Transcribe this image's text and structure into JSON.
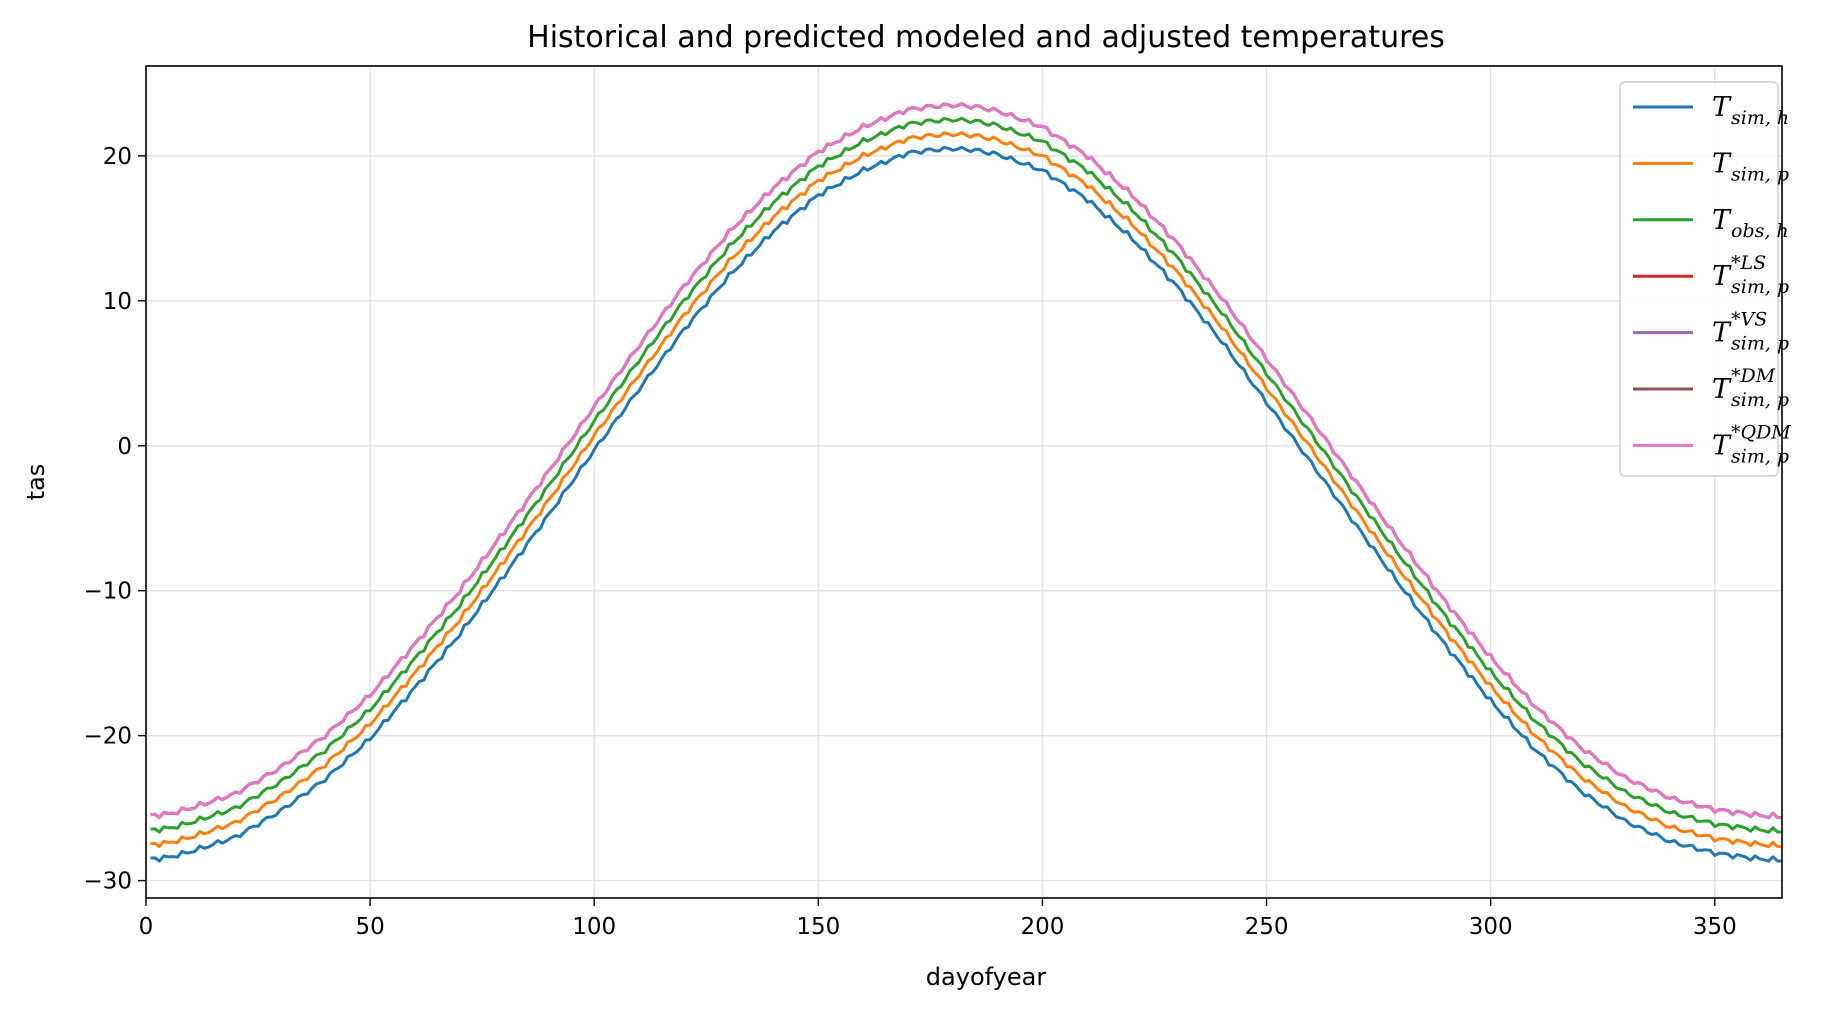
{
  "chart_data": {
    "type": "line",
    "title": "Historical and predicted modeled and adjusted temperatures",
    "xlabel": "dayofyear",
    "ylabel": "tas",
    "xlim": [
      0,
      365
    ],
    "ylim": [
      -31.2,
      26.2
    ],
    "x_ticks": [
      0,
      50,
      100,
      150,
      200,
      250,
      300,
      350
    ],
    "y_ticks": [
      -30,
      -20,
      -10,
      0,
      10,
      20
    ],
    "grid": true,
    "legend_position": "top-right",
    "curve_model": {
      "x": [
        1,
        5,
        10,
        20,
        30,
        40,
        50,
        60,
        70,
        80,
        90,
        100,
        110,
        120,
        130,
        140,
        150,
        160,
        170,
        175,
        180,
        185,
        190,
        200,
        210,
        220,
        230,
        240,
        250,
        260,
        270,
        280,
        290,
        300,
        310,
        320,
        330,
        340,
        350,
        360,
        365
      ],
      "base_sim_h": [
        -28.5,
        -28.4,
        -28.0,
        -27.0,
        -25.2,
        -23.0,
        -20.2,
        -16.7,
        -13.0,
        -8.9,
        -4.7,
        -0.3,
        3.9,
        8.0,
        11.7,
        14.8,
        17.3,
        19.0,
        20.2,
        20.4,
        20.5,
        20.4,
        20.1,
        19.0,
        17.0,
        14.3,
        11.0,
        7.2,
        3.0,
        -1.2,
        -5.5,
        -9.7,
        -13.8,
        -17.6,
        -21.0,
        -23.8,
        -25.9,
        -27.3,
        -28.1,
        -28.5,
        -28.6
      ]
    },
    "series": [
      {
        "name": "T_{sim,h}",
        "color": "#1f77b4",
        "offset": 0
      },
      {
        "name": "T_{sim,p}",
        "color": "#ff7f0e",
        "offset": 1
      },
      {
        "name": "T_{obs,h}",
        "color": "#2ca02c",
        "offset": 2
      },
      {
        "name": "T^{*LS}_{sim,p}",
        "color": "#d62728",
        "offset": 3
      },
      {
        "name": "T^{*VS}_{sim,p}",
        "color": "#9467bd",
        "offset": 3
      },
      {
        "name": "T^{*DM}_{sim,p}",
        "color": "#8c564b",
        "offset": 3
      },
      {
        "name": "T^{*QDM}_{sim,p}",
        "color": "#e377c2",
        "offset": 3
      }
    ]
  },
  "legend": [
    {
      "main": "T",
      "sub": "sim, h",
      "sup": ""
    },
    {
      "main": "T",
      "sub": "sim, p",
      "sup": ""
    },
    {
      "main": "T",
      "sub": "obs, h",
      "sup": ""
    },
    {
      "main": "T",
      "sub": "sim, p",
      "sup": "*LS"
    },
    {
      "main": "T",
      "sub": "sim, p",
      "sup": "*VS"
    },
    {
      "main": "T",
      "sub": "sim, p",
      "sup": "*DM"
    },
    {
      "main": "T",
      "sub": "sim, p",
      "sup": "*QDM"
    }
  ]
}
